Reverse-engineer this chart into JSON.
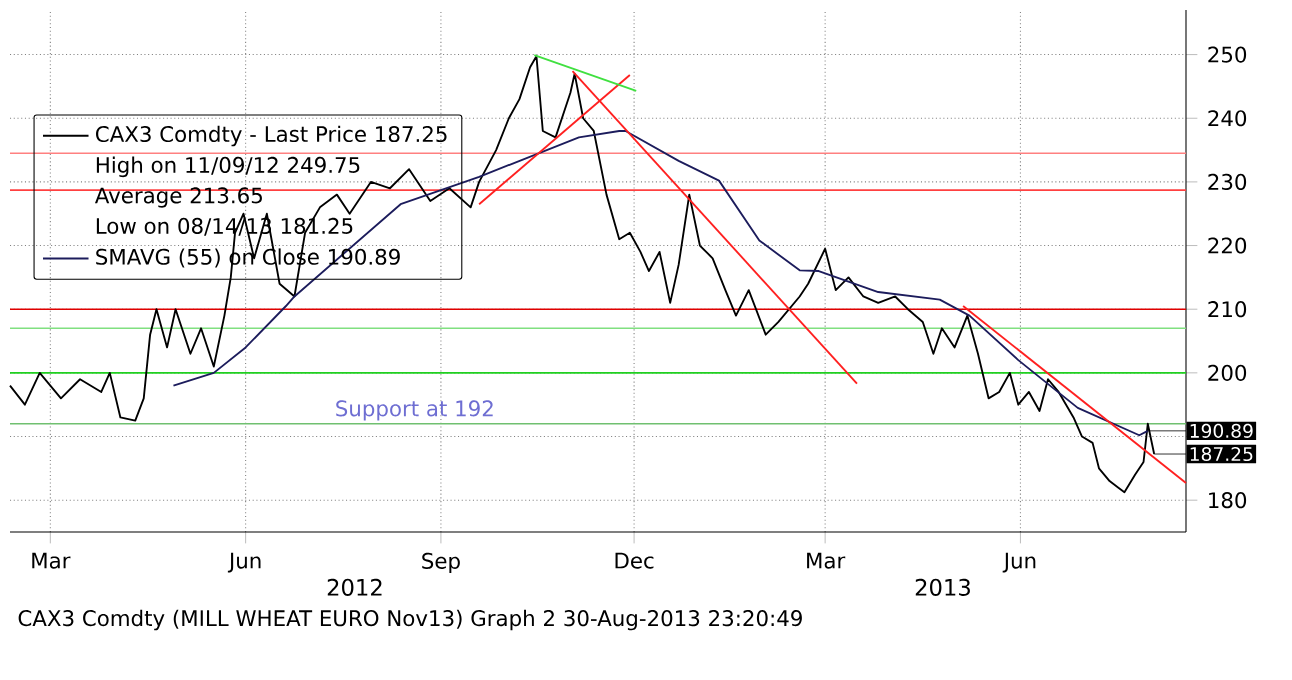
{
  "chart_data": {
    "type": "line",
    "xlim": [
      "2012-02-11",
      "2013-08-18"
    ],
    "ylim": [
      175,
      257
    ],
    "xticks": [
      {
        "value": "2012-03-01",
        "label": "Mar"
      },
      {
        "value": "2012-06-01",
        "label": "Jun"
      },
      {
        "value": "2012-09-01",
        "label": "Sep"
      },
      {
        "value": "2012-12-01",
        "label": "Dec"
      },
      {
        "value": "2013-03-01",
        "label": "Mar"
      },
      {
        "value": "2013-06-01",
        "label": "Jun"
      }
    ],
    "yticks": [
      180,
      {
        "value": 190,
        "label": null
      },
      200,
      210,
      220,
      230,
      240,
      250
    ],
    "grid": true,
    "legend": "top left",
    "series": [
      {
        "name": "CAX3 Comdty - Last Price 187.25",
        "color": "#000000",
        "x": [
          "2012-02-11",
          "2012-02-18",
          "2012-02-25",
          "2012-03-06",
          "2012-03-15",
          "2012-03-25",
          "2012-03-29",
          "2012-04-03",
          "2012-04-10",
          "2012-04-14",
          "2012-04-17",
          "2012-04-20",
          "2012-04-25",
          "2012-04-29",
          "2012-05-06",
          "2012-05-11",
          "2012-05-17",
          "2012-05-22",
          "2012-05-25",
          "2012-05-27",
          "2012-05-31",
          "2012-06-05",
          "2012-06-11",
          "2012-06-17",
          "2012-06-24",
          "2012-06-29",
          "2012-07-06",
          "2012-07-14",
          "2012-07-20",
          "2012-07-30",
          "2012-08-08",
          "2012-08-17",
          "2012-08-27",
          "2012-09-05",
          "2012-09-15",
          "2012-09-19",
          "2012-09-27",
          "2012-10-03",
          "2012-10-08",
          "2012-10-13",
          "2012-10-16",
          "2012-10-19",
          "2012-10-25",
          "2012-11-01",
          "2012-11-03",
          "2012-11-07",
          "2012-11-12",
          "2012-11-15",
          "2012-11-18",
          "2012-11-24",
          "2012-11-29",
          "2012-12-04",
          "2012-12-08",
          "2012-12-13",
          "2012-12-18",
          "2012-12-22",
          "2012-12-27",
          "2013-01-01",
          "2013-01-07",
          "2013-01-13",
          "2013-01-18",
          "2013-01-24",
          "2013-02-01",
          "2013-02-07",
          "2013-02-17",
          "2013-02-21",
          "2013-03-01",
          "2013-03-06",
          "2013-03-12",
          "2013-03-19",
          "2013-03-26",
          "2013-04-03",
          "2013-04-09",
          "2013-04-16",
          "2013-04-21",
          "2013-04-25",
          "2013-05-01",
          "2013-05-07",
          "2013-05-12",
          "2013-05-17",
          "2013-05-22",
          "2013-05-27",
          "2013-05-31",
          "2013-06-05",
          "2013-06-10",
          "2013-06-14",
          "2013-06-19",
          "2013-06-26",
          "2013-06-30",
          "2013-07-05",
          "2013-07-08",
          "2013-07-13",
          "2013-07-17",
          "2013-07-20",
          "2013-07-25",
          "2013-07-29",
          "2013-07-31",
          "2013-08-03"
        ],
        "values": [
          198,
          195,
          200,
          196,
          199,
          197,
          200,
          193,
          192.5,
          196,
          206,
          210,
          204,
          210,
          203,
          207,
          201,
          209,
          215,
          222,
          225,
          218,
          225,
          214,
          212,
          222,
          226,
          228,
          225,
          230,
          229,
          232,
          227,
          229,
          226,
          230,
          235,
          240,
          243,
          248,
          249.75,
          238,
          237,
          244,
          247,
          240,
          238,
          233,
          228,
          221,
          222,
          219,
          216,
          219,
          211,
          217,
          228,
          220,
          218,
          213,
          209,
          213,
          206,
          208,
          212,
          214,
          219.5,
          213,
          215,
          212,
          211,
          212,
          210,
          208,
          203,
          207,
          204,
          209,
          203,
          196,
          197,
          200,
          195,
          197,
          194,
          199,
          197,
          193,
          190,
          189,
          185,
          183,
          182,
          181.25,
          184,
          186,
          192,
          187.25
        ]
      },
      {
        "name": "SMAVG (55) on Close 190.89",
        "color": "#1c1c5c",
        "x": [
          "2012-04-28",
          "2012-05-17",
          "2012-06-01",
          "2012-06-20",
          "2012-06-24",
          "2012-08-13",
          "2012-09-19",
          "2012-11-05",
          "2012-11-24",
          "2012-11-27",
          "2012-12-22",
          "2013-01-10",
          "2013-01-29",
          "2013-02-17",
          "2013-02-26",
          "2013-03-26",
          "2013-04-24",
          "2013-05-08",
          "2013-05-31",
          "2013-06-28",
          "2013-07-27",
          "2013-07-31"
        ],
        "values": [
          198,
          200,
          204,
          210.5,
          212,
          226.5,
          230.8,
          237,
          238,
          238,
          233.3,
          230.2,
          220.8,
          216.1,
          216,
          212.7,
          211.5,
          209,
          202,
          194.5,
          190.2,
          190.89
        ]
      },
      {
        "type": "line",
        "color": "#ff2020",
        "x": [
          "2012-09-19",
          "2012-11-29"
        ],
        "values": [
          226.5,
          246.8
        ]
      },
      {
        "type": "line",
        "color": "#ff2020",
        "x": [
          "2012-11-02",
          "2013-03-16"
        ],
        "values": [
          247.4,
          198.3
        ]
      },
      {
        "type": "line",
        "color": "#ff2020",
        "x": [
          "2013-05-05",
          "2013-08-18"
        ],
        "values": [
          210.5,
          182.7
        ]
      },
      {
        "type": "line",
        "color": "#40e040",
        "x": [
          "2012-10-15",
          "2012-12-02"
        ],
        "values": [
          249.9,
          244.3
        ]
      }
    ],
    "ref_lines": [
      {
        "axis": "y",
        "value": 234.5,
        "color": "#ff8080"
      },
      {
        "axis": "y",
        "value": 228.7,
        "color": "#ff4040"
      },
      {
        "axis": "y",
        "value": 210,
        "color": "#e00000"
      },
      {
        "axis": "y",
        "value": 207,
        "color": "#80e080"
      },
      {
        "axis": "y",
        "value": 200,
        "color": "#20d020"
      },
      {
        "axis": "y",
        "value": 192,
        "color": "#70c070",
        "label": "Support at 192"
      }
    ],
    "annotations": [
      "High on 11/09/12 249.75",
      "Average 213.65",
      "Low on 08/14/13 181.25",
      "2012",
      "2013",
      "CAX3 Comdty (MILL WHEAT EURO   Nov13) Graph 2   30-Aug-2013 23:20:49",
      {
        "text": "190.89",
        "x": "2013-07-31",
        "y": 190.89
      },
      {
        "text": "187.25",
        "x": "2013-08-03",
        "y": 187.25
      }
    ]
  }
}
